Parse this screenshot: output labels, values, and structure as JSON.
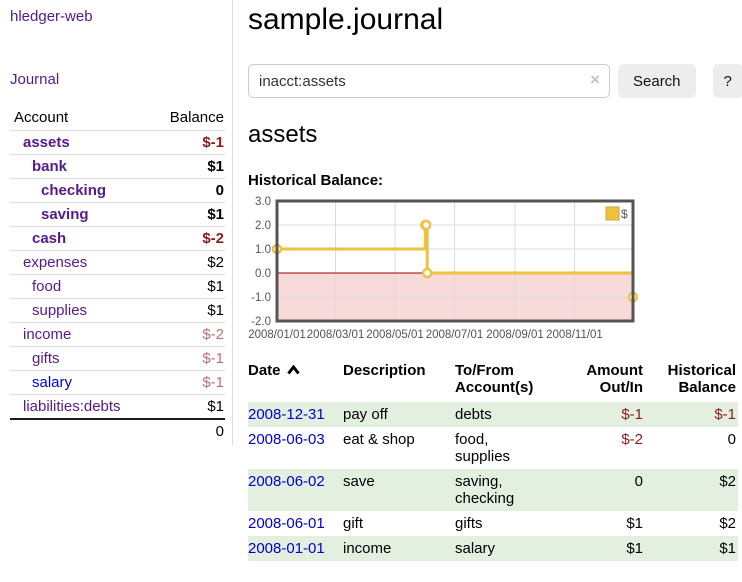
{
  "colors": {
    "accent_gold": "#edc240",
    "link_purple": "#551a8b",
    "link_blue": "#0000cc",
    "negative_strong": "#8f1b1b",
    "negative_soft": "#b97272",
    "row_green": "#e3efdf"
  },
  "sidebar": {
    "brand": "hledger-web",
    "nav": [
      {
        "label": "Journal"
      }
    ],
    "table": {
      "headers": [
        "Account",
        "Balance"
      ],
      "rows": [
        {
          "account": "assets",
          "balance": "$-1",
          "depth": 1,
          "bold": true,
          "neg": "strong"
        },
        {
          "account": "bank",
          "balance": "$1",
          "depth": 2,
          "bold": true,
          "neg": null
        },
        {
          "account": "checking",
          "balance": "0",
          "depth": 3,
          "bold": true,
          "neg": null
        },
        {
          "account": "saving",
          "balance": "$1",
          "depth": 3,
          "bold": true,
          "neg": null
        },
        {
          "account": "cash",
          "balance": "$-2",
          "depth": 2,
          "bold": true,
          "neg": "strong"
        },
        {
          "account": "expenses",
          "balance": "$2",
          "depth": 1,
          "bold": false,
          "neg": null
        },
        {
          "account": "food",
          "balance": "$1",
          "depth": 2,
          "bold": false,
          "neg": null
        },
        {
          "account": "supplies",
          "balance": "$1",
          "depth": 2,
          "bold": false,
          "neg": null
        },
        {
          "account": "income",
          "balance": "$-2",
          "depth": 1,
          "bold": false,
          "neg": "soft"
        },
        {
          "account": "gifts",
          "balance": "$-1",
          "depth": 2,
          "bold": false,
          "neg": "soft"
        },
        {
          "account": "salary",
          "balance": "$-1",
          "depth": 2,
          "bold": false,
          "neg": "soft",
          "link_blue": true
        },
        {
          "account": "liabilities:debts",
          "balance": "$1",
          "depth": 1,
          "bold": false,
          "neg": null
        }
      ],
      "total": "0"
    }
  },
  "header": {
    "title": "sample.journal",
    "search": {
      "value": "inacct:assets",
      "clear_icon": "×",
      "button": "Search",
      "help_button": "?"
    }
  },
  "main": {
    "account_title": "assets"
  },
  "chart_data": {
    "type": "line",
    "step": true,
    "title": "Historical Balance:",
    "series": [
      {
        "name": "$",
        "color": "#edc240",
        "points": [
          {
            "x": "2008-01-01",
            "y": 1
          },
          {
            "x": "2008-06-01",
            "y": 2
          },
          {
            "x": "2008-06-02",
            "y": 2
          },
          {
            "x": "2008-06-03",
            "y": 0
          },
          {
            "x": "2008-12-31",
            "y": -1
          }
        ]
      }
    ],
    "x_range": [
      "2008-01-01",
      "2008-12-31"
    ],
    "ylim": [
      -2,
      3
    ],
    "x_tick_labels": [
      "2008/01/01",
      "2008/03/01",
      "2008/05/01",
      "2008/07/01",
      "2008/09/01",
      "2008/11/01"
    ],
    "y_tick_values": [
      3,
      2,
      1,
      0,
      -1,
      -2
    ],
    "y_tick_labels": [
      "3.0",
      "2.0",
      "1.0",
      "0.0",
      "-1.0",
      "-2.0"
    ],
    "grid": true,
    "legend_position": "top-right",
    "legend_label": "$",
    "negative_region_color": "#f9dada",
    "zero_line_color": "#990000",
    "gridline_color": "#dcdcdc",
    "border_color": "#545454",
    "tick_label_color": "#545454"
  },
  "transactions": {
    "headers": [
      "Date",
      "Description",
      "To/From Account(s)",
      "Amount Out/In",
      "Historical Balance"
    ],
    "sort": {
      "column": "Date",
      "direction": "ascending"
    },
    "rows": [
      {
        "date": "2008-12-31",
        "description": "pay off",
        "accounts": "debts",
        "amount": "$-1",
        "amount_neg": true,
        "balance": "$-1",
        "balance_neg": true
      },
      {
        "date": "2008-06-03",
        "description": "eat & shop",
        "accounts": "food, supplies",
        "amount": "$-2",
        "amount_neg": true,
        "balance": "0",
        "balance_neg": false
      },
      {
        "date": "2008-06-02",
        "description": "save",
        "accounts": "saving, checking",
        "amount": "0",
        "amount_neg": false,
        "balance": "$2",
        "balance_neg": false
      },
      {
        "date": "2008-06-01",
        "description": "gift",
        "accounts": "gifts",
        "amount": "$1",
        "amount_neg": false,
        "balance": "$2",
        "balance_neg": false
      },
      {
        "date": "2008-01-01",
        "description": "income",
        "accounts": "salary",
        "amount": "$1",
        "amount_neg": false,
        "balance": "$1",
        "balance_neg": false
      }
    ]
  }
}
